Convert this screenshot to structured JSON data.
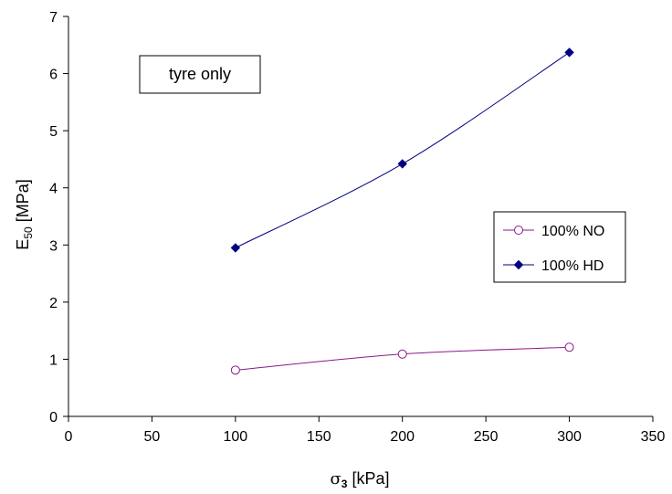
{
  "chart_data": {
    "type": "line",
    "title": "",
    "annotation": "tyre only",
    "xlabel": {
      "symbol": "σ",
      "sub": "3",
      "unit": " [kPa]"
    },
    "ylabel": {
      "symbol": "E",
      "sub": "50",
      "unit": " [MPa]"
    },
    "xlim": [
      0,
      350
    ],
    "ylim": [
      0,
      7
    ],
    "xticks": [
      0,
      50,
      100,
      150,
      200,
      250,
      300,
      350
    ],
    "yticks": [
      0,
      1,
      2,
      3,
      4,
      5,
      6,
      7
    ],
    "grid": false,
    "legend_position": "right",
    "series": [
      {
        "name": "100% NO",
        "x": [
          100,
          200,
          300
        ],
        "y": [
          0.81,
          1.09,
          1.21
        ],
        "color": "#8b1a89",
        "marker": "circle-open"
      },
      {
        "name": "100% HD",
        "x": [
          100,
          200,
          300
        ],
        "y": [
          2.95,
          4.42,
          6.37
        ],
        "color": "#000080",
        "marker": "diamond-filled"
      }
    ]
  }
}
